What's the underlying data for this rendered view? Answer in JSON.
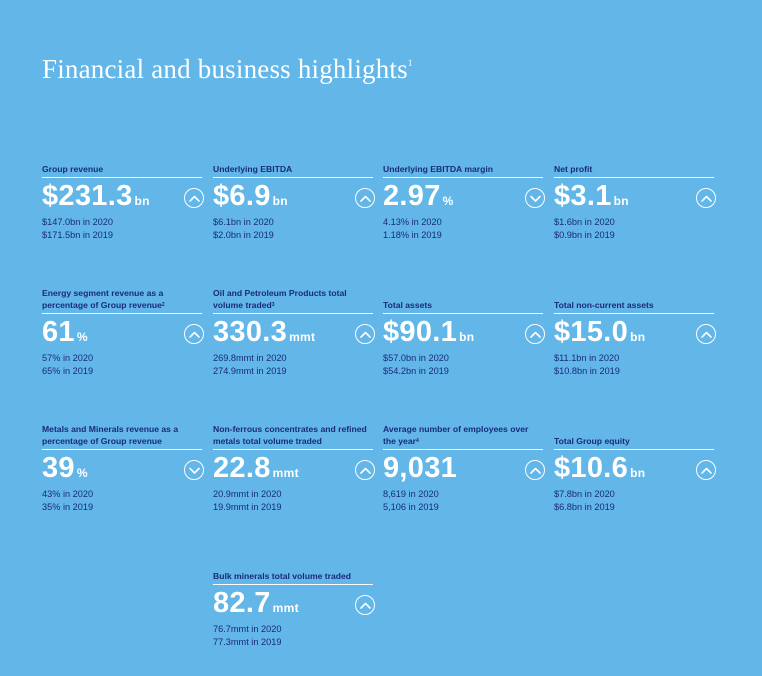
{
  "title": "Financial and business highlights",
  "title_sup": "1",
  "cards": [
    {
      "label": "Group revenue",
      "sup": "",
      "value": "$231.3",
      "unit": "bn",
      "direction": "up",
      "sub1": "$147.0bn in 2020",
      "sub2": "$171.5bn in 2019"
    },
    {
      "label": "Underlying EBITDA",
      "sup": "",
      "value": "$6.9",
      "unit": "bn",
      "direction": "up",
      "sub1": "$6.1bn in 2020",
      "sub2": "$2.0bn in 2019"
    },
    {
      "label": "Underlying EBITDA margin",
      "sup": "",
      "value": "2.97",
      "unit": "%",
      "direction": "down",
      "sub1": "4.13% in 2020",
      "sub2": "1.18% in 2019"
    },
    {
      "label": "Net profit",
      "sup": "",
      "value": "$3.1",
      "unit": "bn",
      "direction": "up",
      "sub1": "$1.6bn in 2020",
      "sub2": "$0.9bn in 2019"
    },
    {
      "label": "Energy segment revenue as a percentage of Group revenue",
      "sup": "2",
      "value": "61",
      "unit": "%",
      "direction": "up",
      "sub1": "57% in 2020",
      "sub2": "65% in 2019"
    },
    {
      "label": "Oil and Petroleum Products total volume traded",
      "sup": "3",
      "value": "330.3",
      "unit": "mmt",
      "direction": "up",
      "sub1": "269.8mmt in 2020",
      "sub2": "274.9mmt in 2019"
    },
    {
      "label": "Total assets",
      "sup": "",
      "value": "$90.1",
      "unit": "bn",
      "direction": "up",
      "sub1": "$57.0bn in 2020",
      "sub2": "$54.2bn in 2019"
    },
    {
      "label": "Total non-current assets",
      "sup": "",
      "value": "$15.0",
      "unit": "bn",
      "direction": "up",
      "sub1": "$11.1bn in 2020",
      "sub2": "$10.8bn in 2019"
    },
    {
      "label": "Metals and Minerals revenue as a percentage of Group revenue",
      "sup": "",
      "value": "39",
      "unit": "%",
      "direction": "down",
      "sub1": "43% in 2020",
      "sub2": "35% in 2019"
    },
    {
      "label": "Non-ferrous concentrates and refined metals total volume traded",
      "sup": "",
      "value": "22.8",
      "unit": "mmt",
      "direction": "up",
      "sub1": "20.9mmt in 2020",
      "sub2": "19.9mmt in 2019"
    },
    {
      "label": "Average number of employees over the year",
      "sup": "4",
      "value": "9,031",
      "unit": "",
      "direction": "up",
      "sub1": "8,619 in 2020",
      "sub2": "5,106 in 2019"
    },
    {
      "label": "Total Group equity",
      "sup": "",
      "value": "$10.6",
      "unit": "bn",
      "direction": "up",
      "sub1": "$7.8bn in 2020",
      "sub2": "$6.8bn in 2019"
    },
    {
      "label": "Bulk minerals total volume traded",
      "sup": "",
      "value": "82.7",
      "unit": "mmt",
      "direction": "up",
      "sub1": "76.7mmt in 2020",
      "sub2": "77.3mmt in 2019"
    }
  ]
}
